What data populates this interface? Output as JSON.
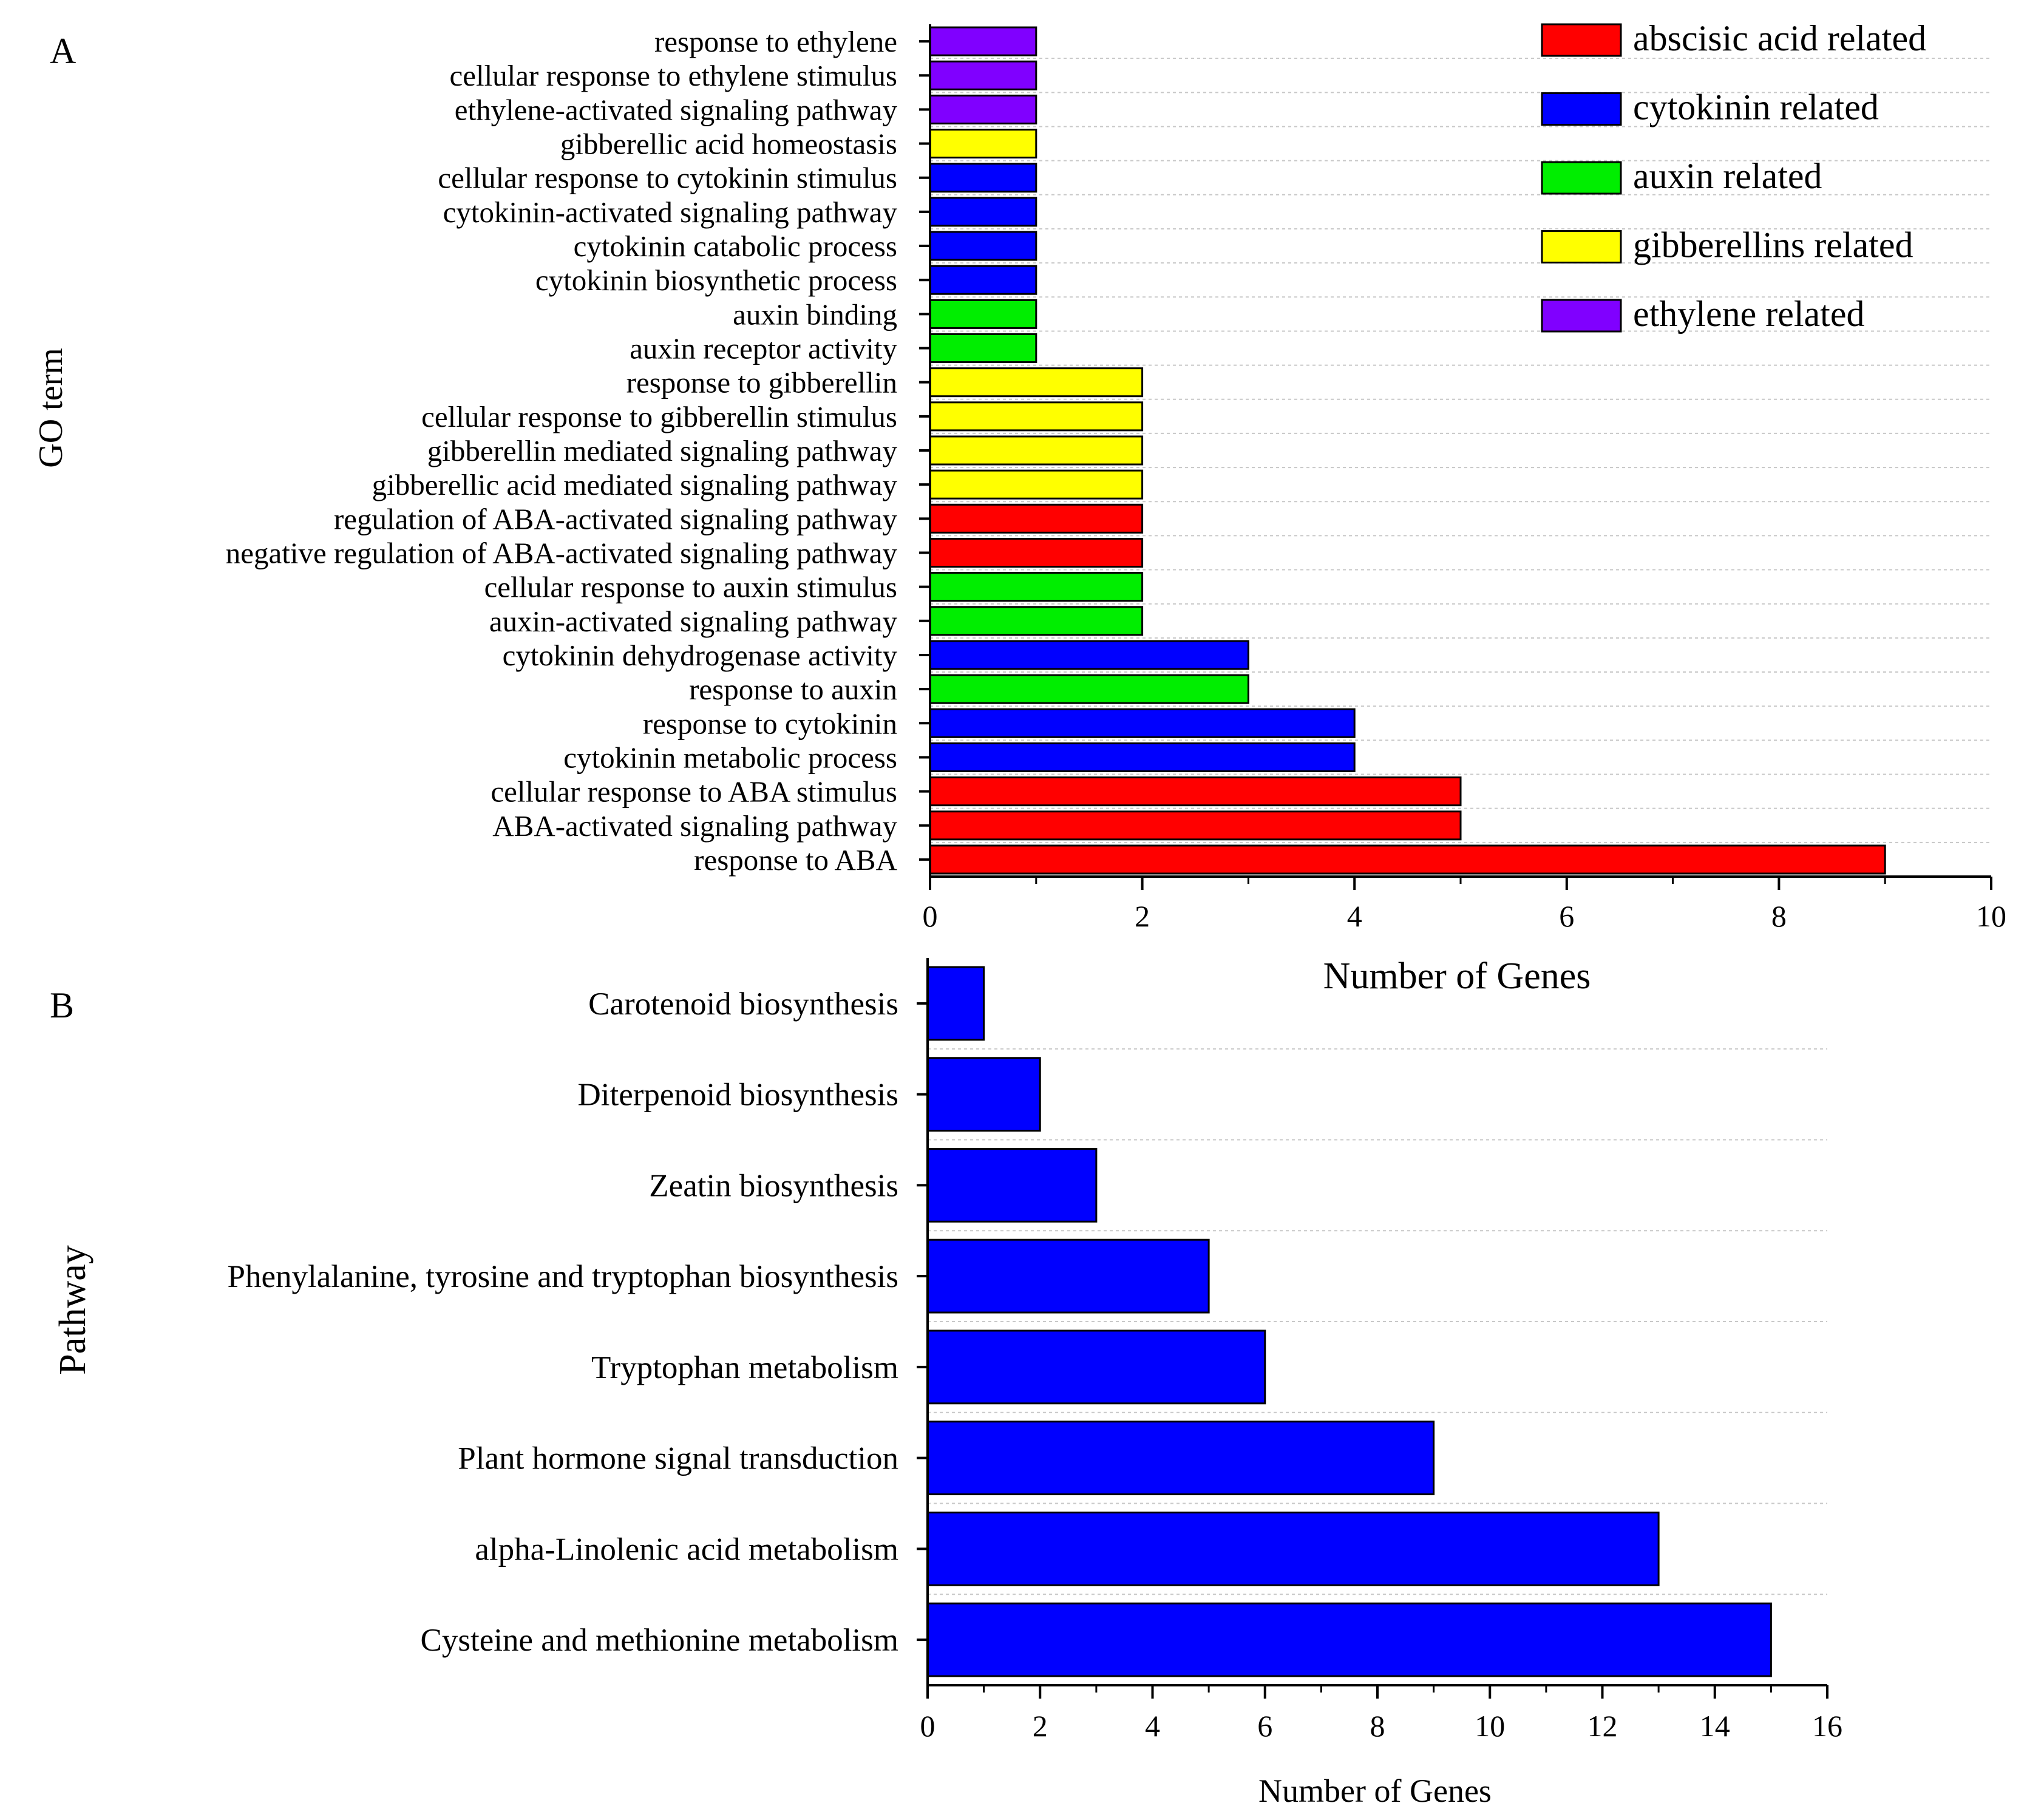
{
  "panel_labels": [
    "A",
    "B"
  ],
  "chart_data": [
    {
      "type": "bar",
      "orientation": "horizontal",
      "panel": "A",
      "xlabel": "Number of Genes",
      "ylabel": "GO term",
      "xlim": [
        0,
        10
      ],
      "xticks": [
        "0",
        "2",
        "4",
        "6",
        "8",
        "10"
      ],
      "legend_position": "top-right",
      "legend": [
        {
          "label": "abscisic acid related",
          "color": "#ff0000"
        },
        {
          "label": "cytokinin related",
          "color": "#0000ff"
        },
        {
          "label": "auxin related",
          "color": "#00ee00"
        },
        {
          "label": "gibberellins related",
          "color": "#ffff00"
        },
        {
          "label": "ethylene related",
          "color": "#8000ff"
        }
      ],
      "categories": [
        "response to ethylene",
        "cellular response to ethylene stimulus",
        "ethylene-activated signaling pathway",
        "gibberellic acid homeostasis",
        "cellular response to cytokinin stimulus",
        "cytokinin-activated signaling pathway",
        "cytokinin catabolic process",
        "cytokinin biosynthetic process",
        "auxin binding",
        "auxin receptor activity",
        "response to gibberellin",
        "cellular response to gibberellin stimulus",
        "gibberellin mediated signaling pathway",
        "gibberellic acid mediated signaling pathway",
        "regulation of ABA-activated signaling pathway",
        "negative regulation of ABA-activated signaling pathway",
        "cellular response to auxin stimulus",
        "auxin-activated signaling pathway",
        "cytokinin dehydrogenase activity",
        "response to auxin",
        "response to cytokinin",
        "cytokinin metabolic process",
        "cellular response to ABA stimulus",
        "ABA-activated signaling pathway",
        "response to ABA"
      ],
      "values": [
        1,
        1,
        1,
        1,
        1,
        1,
        1,
        1,
        1,
        1,
        2,
        2,
        2,
        2,
        2,
        2,
        2,
        2,
        3,
        3,
        4,
        4,
        5,
        5,
        9
      ],
      "groups": [
        4,
        4,
        4,
        3,
        1,
        1,
        1,
        1,
        2,
        2,
        3,
        3,
        3,
        3,
        0,
        0,
        2,
        2,
        1,
        2,
        1,
        1,
        0,
        0,
        0
      ]
    },
    {
      "type": "bar",
      "orientation": "horizontal",
      "panel": "B",
      "xlabel": "Number of Genes",
      "ylabel": "Pathway",
      "xlim": [
        0,
        16
      ],
      "xticks": [
        "0",
        "2",
        "4",
        "6",
        "8",
        "10",
        "12",
        "14",
        "16"
      ],
      "bar_color": "#0000ff",
      "categories": [
        "Carotenoid biosynthesis",
        "Diterpenoid biosynthesis",
        "Zeatin biosynthesis",
        "Phenylalanine, tyrosine and tryptophan biosynthesis",
        "Tryptophan metabolism",
        "Plant hormone signal transduction",
        "alpha-Linolenic acid metabolism",
        "Cysteine and methionine metabolism"
      ],
      "values": [
        1,
        2,
        3,
        5,
        6,
        9,
        13,
        15
      ]
    }
  ]
}
